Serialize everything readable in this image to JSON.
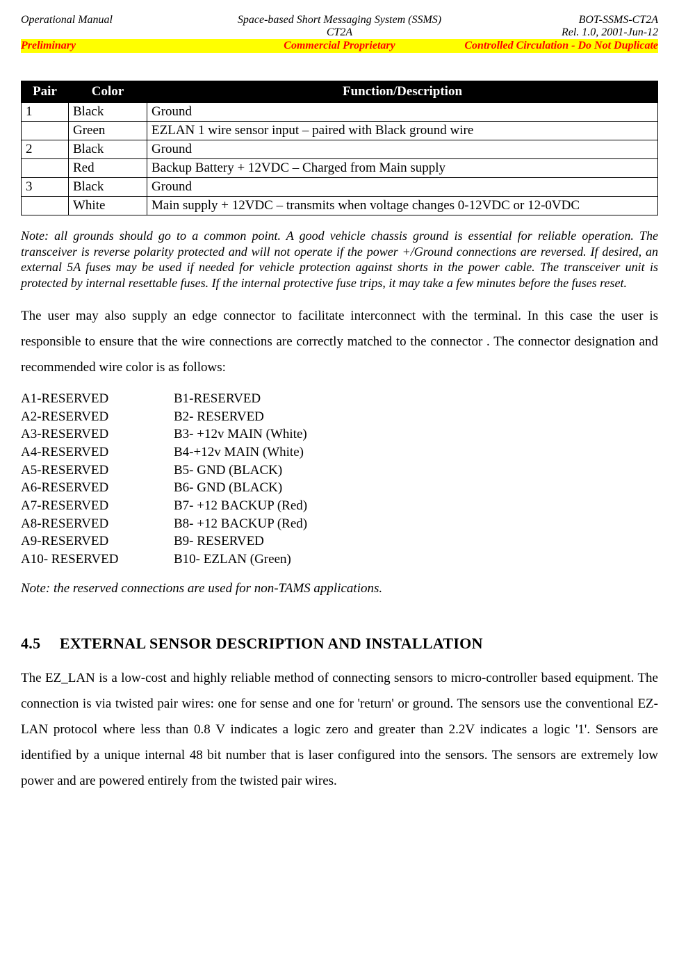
{
  "header": {
    "left1": "Operational Manual",
    "center1": "Space-based Short Messaging System (SSMS)",
    "right1": "BOT-SSMS-CT2A",
    "left2": "",
    "center2": "CT2A",
    "right2": "Rel. 1.0, 2001-Jun-12",
    "banner_left": "Preliminary",
    "banner_center": "Commercial Proprietary",
    "banner_right": "Controlled Circulation - Do Not Duplicate"
  },
  "table": {
    "headers": [
      "Pair",
      "Color",
      "Function/Description"
    ],
    "rows": [
      [
        "1",
        "Black",
        "Ground"
      ],
      [
        "",
        "Green",
        "EZLAN 1 wire sensor input – paired with Black ground wire"
      ],
      [
        "2",
        "Black",
        "Ground"
      ],
      [
        "",
        "Red",
        "Backup Battery + 12VDC – Charged from Main supply"
      ],
      [
        "3",
        "Black",
        "Ground"
      ],
      [
        "",
        "White",
        "Main supply  + 12VDC – transmits when voltage changes 0-12VDC or 12-0VDC"
      ]
    ]
  },
  "note1": "Note: all grounds should go to a common point. A good vehicle chassis ground is essential for reliable operation. The transceiver is reverse polarity protected and will not operate if the power +/Ground connections are reversed. If desired, an external 5A fuses may be used if needed for vehicle protection against shorts in the power cable. The transceiver unit is protected by internal resettable fuses. If the internal protective fuse trips, it may take a few minutes before the fuses reset.",
  "para1": "The user may also supply an edge connector to facilitate interconnect with the terminal. In this case the user is responsible to ensure that the wire connections are correctly matched to the connector . The connector designation and recommended wire color is as follows:",
  "pins": [
    {
      "a": "A1-RESERVED",
      "b": "B1-RESERVED"
    },
    {
      "a": "A2-RESERVED",
      "b": "B2- RESERVED"
    },
    {
      "a": "A3-RESERVED",
      "b": "B3- +12v MAIN (White)"
    },
    {
      "a": "A4-RESERVED",
      "b": "B4-+12v MAIN  (White)"
    },
    {
      "a": "A5-RESERVED",
      "b": "B5- GND (BLACK)"
    },
    {
      "a": "A6-RESERVED",
      "b": "B6- GND (BLACK)"
    },
    {
      "a": "A7-RESERVED",
      "b": "B7- +12 BACKUP (Red)"
    },
    {
      "a": "A8-RESERVED",
      "b": "B8- +12 BACKUP (Red)"
    },
    {
      "a": "A9-RESERVED",
      "b": "B9- RESERVED"
    },
    {
      "a": "A10- RESERVED",
      "b": "B10- EZLAN (Green)"
    }
  ],
  "note2": "Note: the reserved connections are used for non-TAMS applications.",
  "section": {
    "num": "4.5",
    "title": "EXTERNAL  SENSOR  DESCRIPTION  AND INSTALLATION"
  },
  "para2": "The EZ_LAN is a low-cost and highly reliable method of connecting sensors to micro-controller based equipment. The connection is via twisted pair wires: one for sense and one for 'return' or ground. The sensors use the conventional EZ-LAN protocol where less than 0.8 V indicates a logic zero and greater than 2.2V indicates a logic '1'. Sensors are identified by a unique internal 48 bit number that is laser configured into the sensors. The sensors are extremely low power and are powered entirely from the twisted pair wires."
}
